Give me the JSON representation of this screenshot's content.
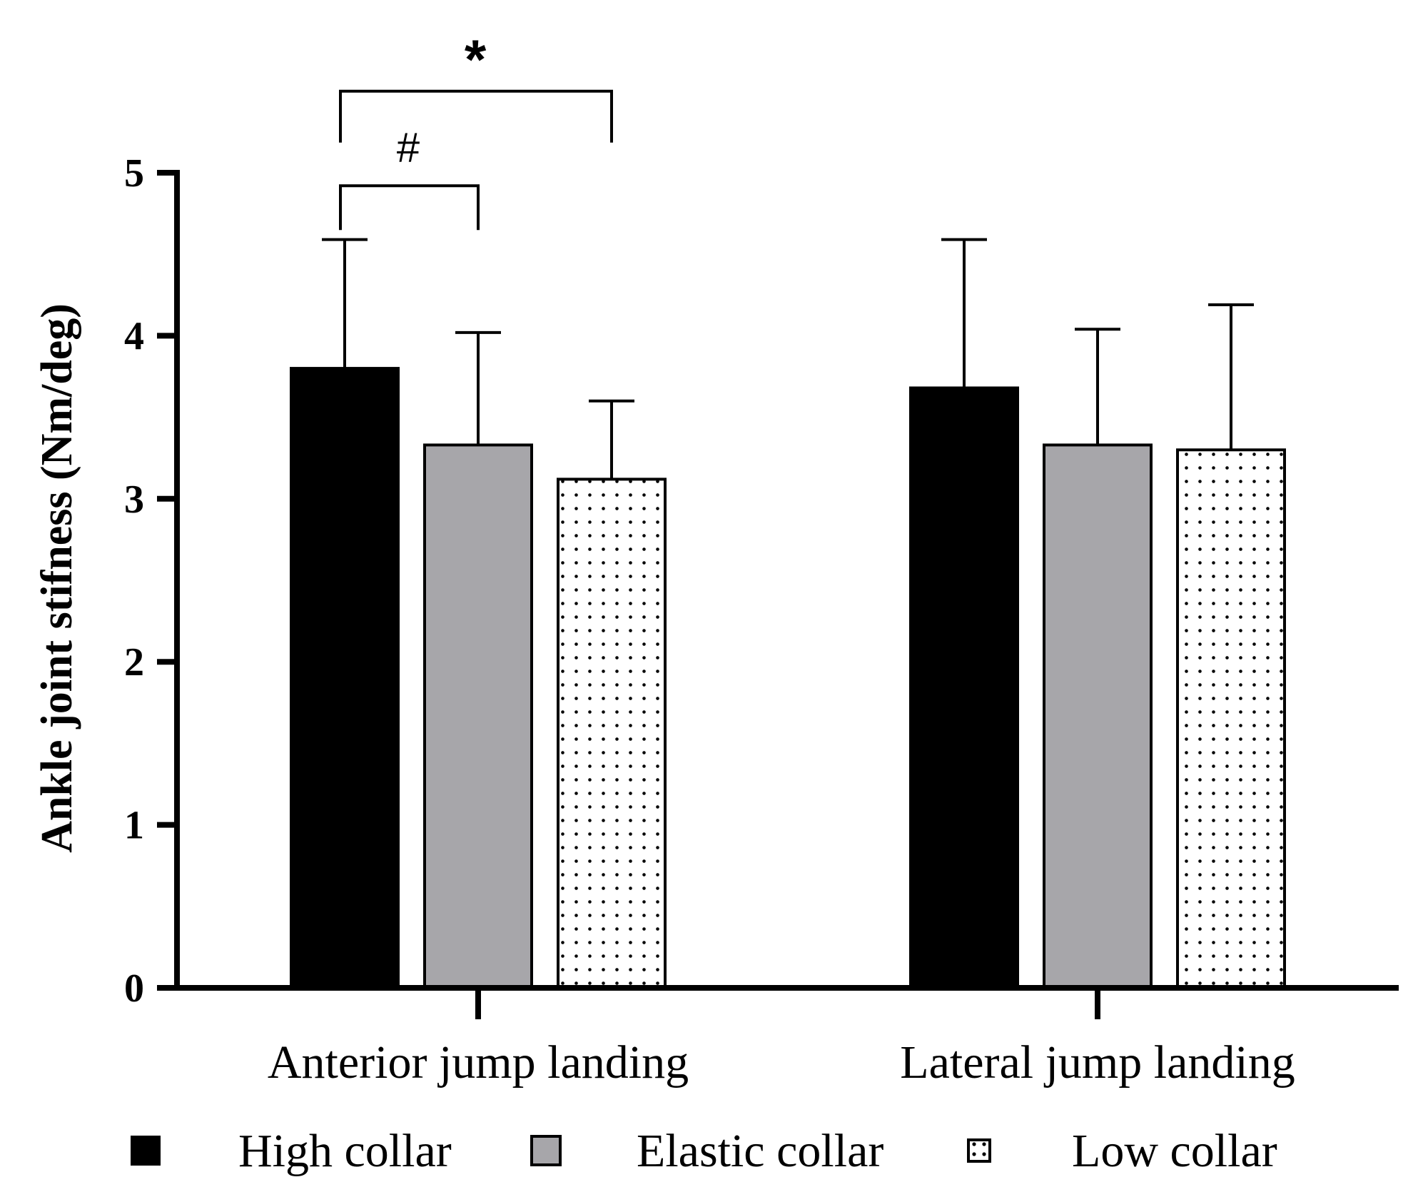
{
  "chart_data": {
    "type": "bar",
    "title": "",
    "xlabel": "",
    "ylabel": "Ankle joint stifness (Nm/deg)",
    "ylim": [
      0,
      5
    ],
    "yticks": [
      "0",
      "1",
      "2",
      "3",
      "4",
      "5"
    ],
    "categories": [
      "Anterior jump landing",
      "Lateral jump landing"
    ],
    "series": [
      {
        "name": "High collar",
        "values": [
          3.8,
          3.68
        ],
        "errors": [
          0.79,
          0.91
        ],
        "color": "#000000",
        "pattern": "solid"
      },
      {
        "name": "Elastic collar",
        "values": [
          3.33,
          3.33
        ],
        "errors": [
          0.69,
          0.71
        ],
        "color": "#a7a6aa",
        "pattern": "solid"
      },
      {
        "name": "Low collar",
        "values": [
          3.12,
          3.3
        ],
        "errors": [
          0.48,
          0.89
        ],
        "color": "#ffffff",
        "pattern": "dots"
      }
    ],
    "legend_position": "bottom",
    "annotations": [
      {
        "label": "*",
        "category": "Anterior jump landing",
        "from_series": "High collar",
        "to_series": "Low collar",
        "level": 5.5
      },
      {
        "label": "#",
        "category": "Anterior jump landing",
        "from_series": "High collar",
        "to_series": "Elastic collar",
        "level": 4.92
      }
    ]
  }
}
